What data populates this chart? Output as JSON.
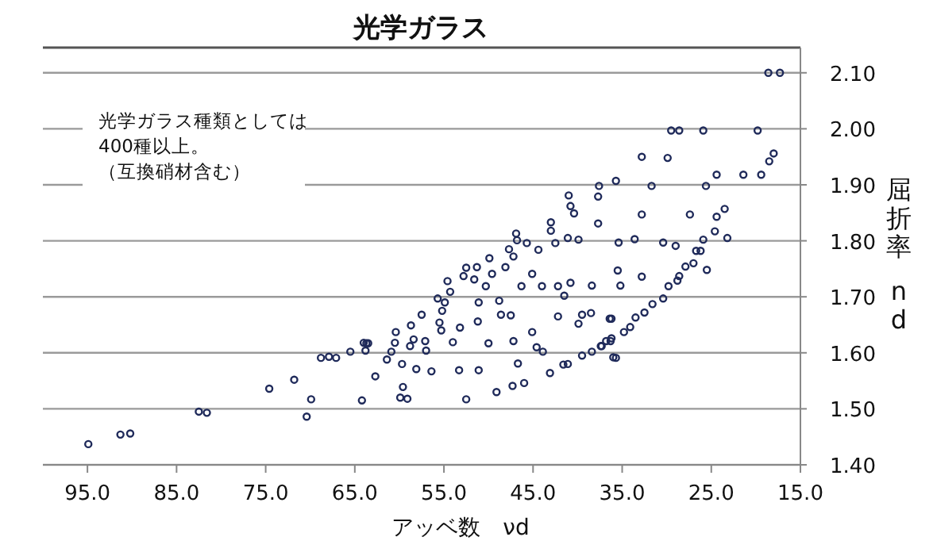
{
  "chart_data": {
    "type": "scatter",
    "title": "光学ガラス",
    "xlabel": "アッベ数　νd",
    "ylabel": "屈折率　nd",
    "annotations": [
      "光学ガラス種類としては",
      "400種以上。",
      "（互換硝材含む）"
    ],
    "color": "#1f2a5a",
    "marker": "circle",
    "grid": "y",
    "xlim": [
      100,
      15
    ],
    "ylim": [
      1.4,
      2.145
    ],
    "xticks": [
      {
        "value": 95,
        "label": "95.0"
      },
      {
        "value": 85,
        "label": "85.0"
      },
      {
        "value": 75,
        "label": "75.0"
      },
      {
        "value": 65,
        "label": "65.0"
      },
      {
        "value": 55,
        "label": "55.0"
      },
      {
        "value": 45,
        "label": "45.0"
      },
      {
        "value": 35,
        "label": "35.0"
      },
      {
        "value": 25,
        "label": "25.0"
      },
      {
        "value": 15,
        "label": "15.0"
      }
    ],
    "yticks": [
      {
        "value": 1.4,
        "label": "1.40"
      },
      {
        "value": 1.5,
        "label": "1.50"
      },
      {
        "value": 1.6,
        "label": "1.60"
      },
      {
        "value": 1.7,
        "label": "1.70"
      },
      {
        "value": 1.8,
        "label": "1.80"
      },
      {
        "value": 1.9,
        "label": "1.90"
      },
      {
        "value": 2.0,
        "label": "2.00"
      },
      {
        "value": 2.1,
        "label": "2.10"
      }
    ],
    "x": [
      18.6,
      17.3,
      29.5,
      28.6,
      25.9,
      19.8,
      32.8,
      29.9,
      18.0,
      18.5,
      24.4,
      21.4,
      19.4,
      35.7,
      31.7,
      25.6,
      32.8,
      27.4,
      24.4,
      23.5,
      35.4,
      33.6,
      30.4,
      29.0,
      25.9,
      24.6,
      23.2,
      26.7,
      26.2,
      35.5,
      25.5,
      27.9,
      27.0,
      32.8,
      28.6,
      28.8,
      35.2,
      29.8,
      30.4,
      31.6,
      32.5,
      33.5,
      36.2,
      34.1,
      34.8,
      36.2,
      36.8,
      37.3,
      35.7,
      37.6,
      37.7,
      41.0,
      40.8,
      40.4,
      37.7,
      43.0,
      43.0,
      42.5,
      41.1,
      39.9,
      46.9,
      46.8,
      45.7,
      44.4,
      47.7,
      47.2,
      48.1,
      49.9,
      49.6,
      50.3,
      51.3,
      51.6,
      51.1,
      51.2,
      52.5,
      52.8,
      54.6,
      54.3,
      54.9,
      55.7,
      55.2,
      55.5,
      55.3,
      57.5,
      58.7,
      60.4,
      60.5,
      60.9,
      61.4,
      62.7,
      58.4,
      57.1,
      57.0,
      58.8,
      59.7,
      58.1,
      56.4,
      59.6,
      59.9,
      59.1,
      53.2,
      54.0,
      53.3,
      52.5,
      51.1,
      50.0,
      49.1,
      48.8,
      48.6,
      47.5,
      47.2,
      46.7,
      47.3,
      46.0,
      46.3,
      45.1,
      44.0,
      45.1,
      44.6,
      43.9,
      42.2,
      41.5,
      42.2,
      40.8,
      39.9,
      39.5,
      38.5,
      38.4,
      43.1,
      41.6,
      41.1,
      39.5,
      38.4,
      37.4,
      36.3,
      36.0,
      36.4,
      63.7,
      94.9,
      91.3,
      90.2,
      82.5,
      81.6,
      74.6,
      71.8,
      69.9,
      70.4,
      68.8,
      67.9,
      67.1,
      65.5,
      64.0,
      63.5,
      63.8,
      64.2
    ],
    "values": [
      2.1,
      2.1,
      1.997,
      1.997,
      1.997,
      1.997,
      1.95,
      1.948,
      1.956,
      1.942,
      1.918,
      1.918,
      1.918,
      1.907,
      1.898,
      1.898,
      1.847,
      1.847,
      1.843,
      1.857,
      1.797,
      1.803,
      1.797,
      1.791,
      1.802,
      1.817,
      1.805,
      1.782,
      1.782,
      1.747,
      1.748,
      1.754,
      1.76,
      1.736,
      1.737,
      1.729,
      1.72,
      1.719,
      1.697,
      1.687,
      1.672,
      1.663,
      1.661,
      1.646,
      1.637,
      1.626,
      1.621,
      1.612,
      1.591,
      1.898,
      1.879,
      1.881,
      1.862,
      1.849,
      1.831,
      1.833,
      1.818,
      1.796,
      1.805,
      1.802,
      1.813,
      1.801,
      1.796,
      1.784,
      1.785,
      1.772,
      1.753,
      1.769,
      1.741,
      1.719,
      1.753,
      1.731,
      1.69,
      1.656,
      1.752,
      1.737,
      1.728,
      1.709,
      1.69,
      1.697,
      1.675,
      1.654,
      1.64,
      1.668,
      1.649,
      1.637,
      1.618,
      1.602,
      1.588,
      1.558,
      1.624,
      1.621,
      1.604,
      1.612,
      1.58,
      1.571,
      1.567,
      1.539,
      1.52,
      1.518,
      1.645,
      1.619,
      1.569,
      1.517,
      1.569,
      1.617,
      1.53,
      1.693,
      1.668,
      1.667,
      1.621,
      1.581,
      1.541,
      1.546,
      1.719,
      1.741,
      1.719,
      1.637,
      1.61,
      1.602,
      1.719,
      1.702,
      1.665,
      1.725,
      1.652,
      1.668,
      1.671,
      1.72,
      1.564,
      1.579,
      1.58,
      1.595,
      1.602,
      1.612,
      1.621,
      1.592,
      1.661,
      1.617,
      1.437,
      1.454,
      1.456,
      1.495,
      1.493,
      1.536,
      1.552,
      1.517,
      1.486,
      1.591,
      1.593,
      1.591,
      1.602,
      1.618,
      1.617,
      1.604,
      1.515
    ]
  }
}
